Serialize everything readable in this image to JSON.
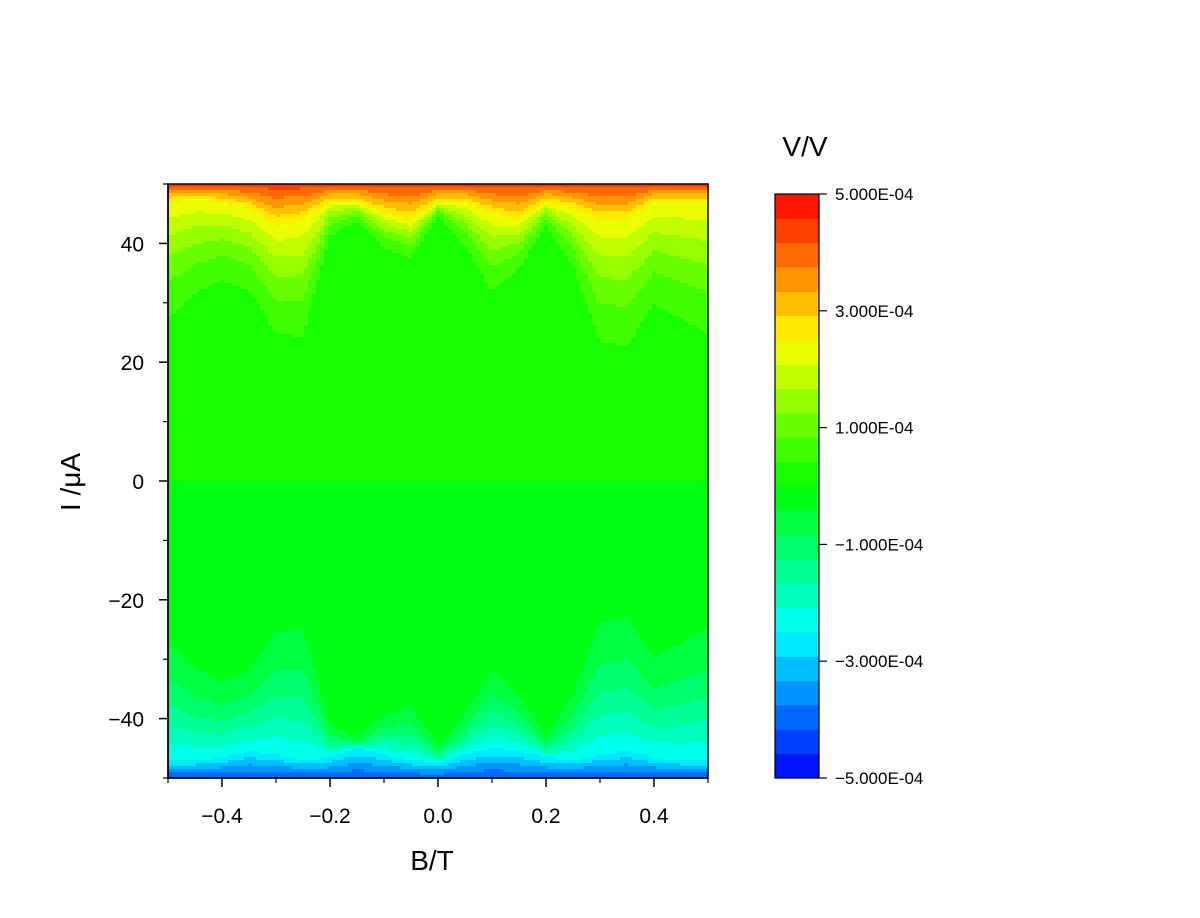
{
  "chart_data": {
    "type": "heatmap",
    "title": "",
    "xlabel": "B/T",
    "ylabel": "I /μA",
    "colorbar_title": "V/V",
    "xlim": [
      -0.5,
      0.5
    ],
    "ylim": [
      -50,
      50
    ],
    "x_ticks": [
      -0.4,
      -0.2,
      0.0,
      0.2,
      0.4
    ],
    "x_tick_labels": [
      "−0.4",
      "−0.2",
      "0.0",
      "0.2",
      "0.4"
    ],
    "y_ticks": [
      -40,
      -20,
      0,
      20,
      40
    ],
    "y_tick_labels": [
      "−40",
      "−20",
      "0",
      "20",
      "40"
    ],
    "colorbar_range": [
      -0.0005,
      0.0005
    ],
    "colorbar_levels": 24,
    "colorbar_ticks": [
      0.0005,
      0.0003,
      0.0001,
      -0.0001,
      -0.0003,
      -0.0005
    ],
    "colorbar_tick_labels": [
      "5.000E-04",
      "3.000E-04",
      "1.000E-04",
      "−1.000E-04",
      "−3.000E-04",
      "−5.000E-04"
    ],
    "colormap": [
      "#0000ff",
      "#00ffff",
      "#00ff00",
      "#ffff00",
      "#ff0000"
    ],
    "grid": false,
    "colorbar_placement": "right",
    "edge_profile": {
      "x": [
        -0.5,
        -0.45,
        -0.4,
        -0.35,
        -0.3,
        -0.25,
        -0.2,
        -0.15,
        -0.1,
        -0.05,
        0.0,
        0.05,
        0.1,
        0.15,
        0.2,
        0.25,
        0.3,
        0.35,
        0.4,
        0.45,
        0.5
      ],
      "plateau_edge_uA": [
        23,
        28,
        31,
        29,
        21,
        20,
        40,
        43,
        38,
        36,
        44,
        38,
        29,
        34,
        42,
        34,
        19,
        18,
        26,
        23,
        20
      ],
      "upper_curve_uA": [
        47,
        47.5,
        47,
        46,
        43,
        44,
        47,
        47,
        45,
        44,
        47,
        47,
        45,
        44,
        47,
        46,
        44,
        44,
        47,
        47,
        47
      ],
      "lower_curve_uA": [
        -47,
        -47,
        -46.5,
        -45.5,
        -46,
        -47,
        -46.5,
        -45,
        -46,
        -47,
        -47.5,
        -46,
        -45,
        -45.5,
        -46.5,
        -47,
        -46,
        -45.5,
        -46.5,
        -47,
        -47
      ]
    }
  }
}
